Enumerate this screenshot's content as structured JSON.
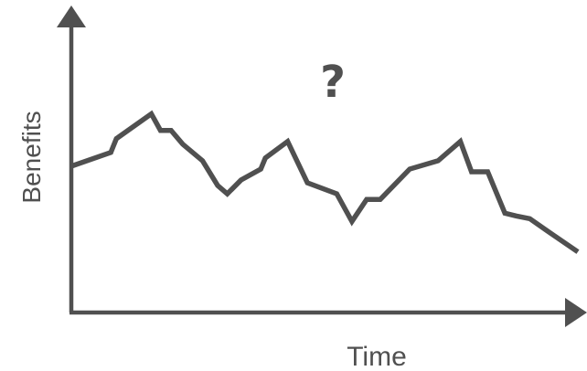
{
  "chart_data": {
    "type": "line",
    "title": "",
    "xlabel": "Time",
    "ylabel": "Benefits",
    "annotation": "?",
    "ylim": [
      0,
      100
    ],
    "xlim": [
      0,
      100
    ],
    "grid": false,
    "color": "#505050",
    "series": [
      {
        "x": [
          0,
          7.8,
          8.9,
          15.8,
          17.6,
          19.7,
          22.0,
          25.9,
          28.9,
          30.8,
          33.5,
          37.4,
          38.3,
          42.7,
          46.6,
          52.4,
          55.4,
          58.3,
          61.0,
          66.8,
          72.4,
          76.8,
          79.0,
          82.2,
          85.6,
          87.8,
          90.5,
          94.4,
          100
        ],
        "y": [
          53,
          58,
          63,
          72,
          66,
          66,
          61,
          55,
          46,
          43,
          48,
          52,
          56,
          62,
          47,
          43,
          33,
          41,
          41,
          52,
          55,
          62,
          51,
          51,
          36,
          35,
          34,
          29,
          22
        ]
      }
    ]
  }
}
